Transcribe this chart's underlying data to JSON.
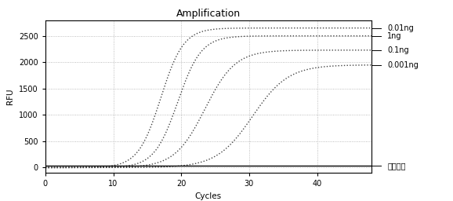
{
  "title": "Amplification",
  "xlabel": "Cycles",
  "ylabel": "RFU",
  "xlim": [
    0,
    48
  ],
  "ylim": [
    -100,
    2800
  ],
  "yticks": [
    0,
    500,
    1000,
    1500,
    2000,
    2500
  ],
  "xticks": [
    0,
    10,
    20,
    30,
    40
  ],
  "series": [
    {
      "label": "0.01ng",
      "midpoint": 17.0,
      "plateau": 2650,
      "slope": 0.6,
      "color": "#444444"
    },
    {
      "label": "1ng",
      "midpoint": 19.5,
      "plateau": 2500,
      "slope": 0.58,
      "color": "#444444"
    },
    {
      "label": "0.1ng",
      "midpoint": 23.5,
      "plateau": 2230,
      "slope": 0.45,
      "color": "#444444"
    },
    {
      "label": "0.001ng",
      "midpoint": 30.5,
      "plateau": 1950,
      "slope": 0.38,
      "color": "#444444"
    }
  ],
  "neg_control": {
    "label": "阴性对照",
    "value": 30,
    "color": "#000000"
  },
  "background_color": "#ffffff",
  "grid_color": "#aaaaaa",
  "figsize": [
    5.78,
    2.56
  ],
  "dpi": 100,
  "title_fontsize": 9,
  "label_fontsize": 7.5,
  "tick_fontsize": 7,
  "annot_fontsize": 7
}
